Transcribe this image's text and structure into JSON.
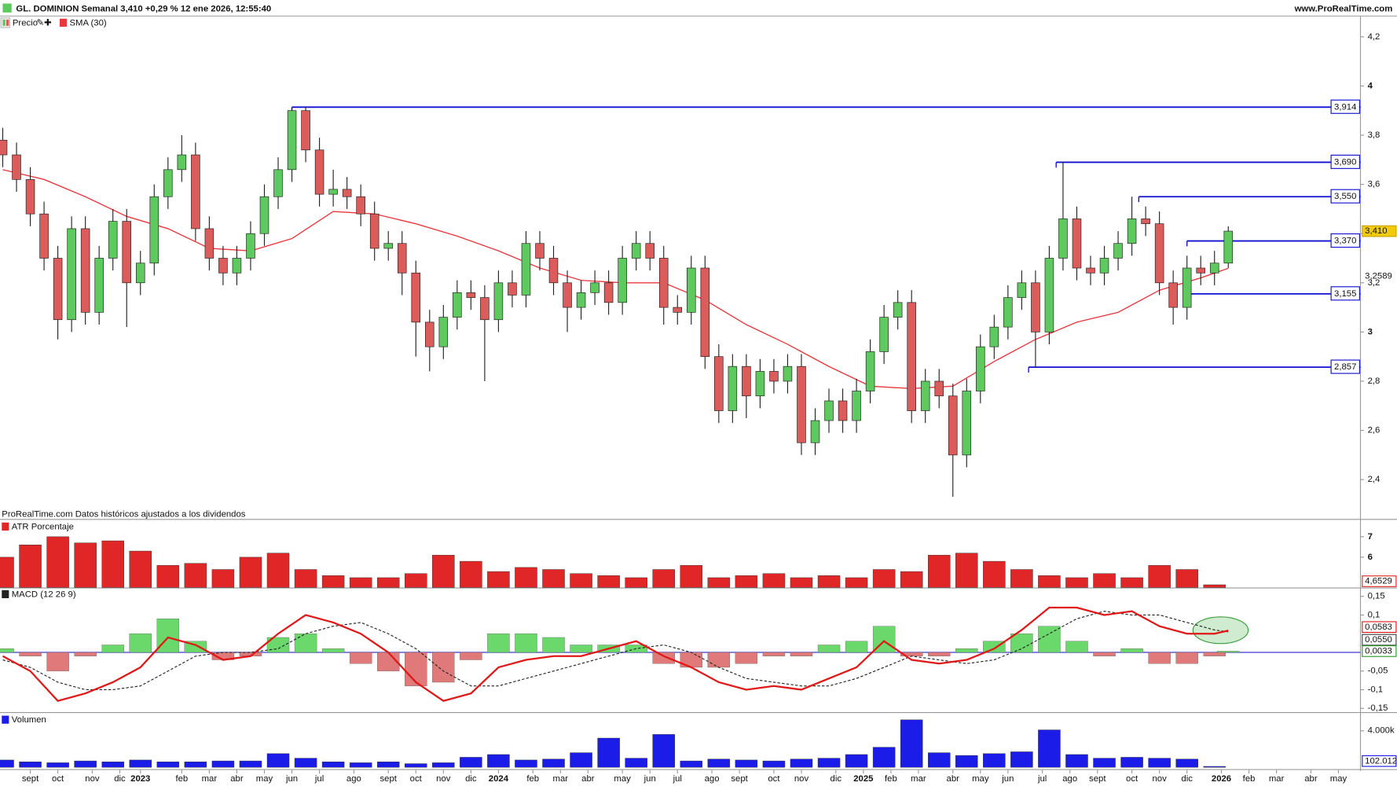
{
  "header": {
    "title": "GL. DOMINION Semanal 3,410 +0,29 % 12 ene 2026, 12:55:40",
    "site": "www.ProRealTime.com"
  },
  "chart_data": [
    {
      "type": "candlestick",
      "name": "Precio",
      "up_color": "#5ec95e",
      "down_color": "#dc5b5b",
      "note": "ProRealTime.com Datos históricos ajustados a los dividendos",
      "x": [
        0,
        2,
        4,
        6,
        8,
        10,
        12,
        14,
        16,
        18,
        20,
        22,
        24,
        26,
        28,
        30,
        32,
        34,
        36,
        38,
        40,
        42,
        44,
        46,
        48,
        50,
        52,
        54,
        56,
        58,
        60,
        62,
        64,
        66,
        68,
        70,
        72,
        74,
        76,
        78,
        80,
        82,
        84,
        86,
        88,
        90,
        92,
        94,
        96,
        98,
        100,
        102,
        104,
        106,
        108,
        110,
        112,
        114,
        116,
        118,
        120,
        122,
        124,
        126,
        128,
        130,
        132,
        134,
        136,
        138,
        140,
        142,
        144,
        146,
        148,
        150,
        152,
        154,
        156,
        158,
        160,
        162,
        164,
        166,
        168,
        170,
        172,
        174,
        176,
        178
      ],
      "open": [
        3.78,
        3.72,
        3.62,
        3.48,
        3.3,
        3.05,
        3.42,
        3.08,
        3.3,
        3.45,
        3.2,
        3.28,
        3.55,
        3.66,
        3.72,
        3.42,
        3.3,
        3.24,
        3.3,
        3.4,
        3.55,
        3.66,
        3.9,
        3.74,
        3.56,
        3.58,
        3.55,
        3.48,
        3.34,
        3.36,
        3.24,
        3.04,
        2.94,
        3.06,
        3.16,
        3.14,
        3.05,
        3.2,
        3.15,
        3.36,
        3.3,
        3.2,
        3.1,
        3.16,
        3.2,
        3.12,
        3.3,
        3.36,
        3.3,
        3.1,
        3.08,
        3.26,
        2.9,
        2.68,
        2.86,
        2.74,
        2.84,
        2.8,
        2.86,
        2.55,
        2.64,
        2.72,
        2.64,
        2.76,
        2.92,
        3.06,
        3.12,
        2.68,
        2.8,
        2.74,
        2.5,
        2.76,
        2.94,
        3.02,
        3.14,
        3.2,
        3.0,
        3.3,
        3.46,
        3.26,
        3.24,
        3.3,
        3.36,
        3.46,
        3.44,
        3.2,
        3.1,
        3.26,
        3.24,
        3.28
      ],
      "high": [
        3.83,
        3.77,
        3.67,
        3.53,
        3.35,
        3.47,
        3.47,
        3.35,
        3.5,
        3.5,
        3.33,
        3.6,
        3.71,
        3.8,
        3.77,
        3.47,
        3.35,
        3.35,
        3.45,
        3.6,
        3.71,
        3.914,
        3.914,
        3.79,
        3.66,
        3.63,
        3.6,
        3.53,
        3.41,
        3.41,
        3.29,
        3.09,
        3.11,
        3.21,
        3.21,
        3.19,
        3.25,
        3.25,
        3.41,
        3.41,
        3.35,
        3.25,
        3.21,
        3.25,
        3.25,
        3.35,
        3.41,
        3.41,
        3.35,
        3.15,
        3.31,
        3.31,
        2.95,
        2.91,
        2.91,
        2.89,
        2.89,
        2.91,
        2.91,
        2.69,
        2.77,
        2.77,
        2.81,
        2.97,
        3.11,
        3.17,
        3.17,
        2.85,
        2.85,
        2.79,
        2.81,
        2.99,
        3.07,
        3.19,
        3.25,
        3.25,
        3.35,
        3.69,
        3.51,
        3.31,
        3.35,
        3.41,
        3.55,
        3.51,
        3.49,
        3.25,
        3.31,
        3.31,
        3.33,
        3.43
      ],
      "low": [
        3.67,
        3.57,
        3.43,
        3.25,
        2.97,
        3.0,
        3.03,
        3.03,
        3.25,
        3.02,
        3.15,
        3.23,
        3.5,
        3.61,
        3.37,
        3.25,
        3.19,
        3.19,
        3.25,
        3.35,
        3.5,
        3.61,
        3.69,
        3.51,
        3.51,
        3.5,
        3.43,
        3.29,
        3.29,
        3.15,
        2.9,
        2.84,
        2.89,
        3.01,
        3.09,
        2.8,
        3.0,
        3.1,
        3.1,
        3.25,
        3.15,
        3.0,
        3.05,
        3.11,
        3.07,
        3.07,
        3.25,
        3.25,
        3.03,
        3.03,
        3.03,
        2.85,
        2.63,
        2.63,
        2.65,
        2.69,
        2.75,
        2.75,
        2.5,
        2.5,
        2.59,
        2.59,
        2.59,
        2.71,
        2.87,
        3.01,
        2.63,
        2.63,
        2.69,
        2.33,
        2.45,
        2.71,
        2.89,
        2.97,
        3.09,
        2.857,
        2.95,
        3.25,
        3.21,
        3.19,
        3.19,
        3.25,
        3.31,
        3.39,
        3.15,
        3.03,
        3.05,
        3.19,
        3.19,
        3.26
      ],
      "close": [
        3.72,
        3.62,
        3.48,
        3.3,
        3.05,
        3.42,
        3.08,
        3.3,
        3.45,
        3.2,
        3.28,
        3.55,
        3.66,
        3.72,
        3.42,
        3.3,
        3.24,
        3.3,
        3.4,
        3.55,
        3.66,
        3.9,
        3.74,
        3.56,
        3.58,
        3.55,
        3.48,
        3.34,
        3.36,
        3.24,
        3.04,
        2.94,
        3.06,
        3.16,
        3.14,
        3.05,
        3.2,
        3.15,
        3.36,
        3.3,
        3.2,
        3.1,
        3.16,
        3.2,
        3.12,
        3.3,
        3.36,
        3.3,
        3.1,
        3.08,
        3.26,
        2.9,
        2.68,
        2.86,
        2.74,
        2.84,
        2.8,
        2.86,
        2.55,
        2.64,
        2.72,
        2.64,
        2.76,
        2.92,
        3.06,
        3.12,
        2.68,
        2.8,
        2.74,
        2.5,
        2.76,
        2.94,
        3.02,
        3.14,
        3.2,
        3.0,
        3.3,
        3.46,
        3.26,
        3.24,
        3.3,
        3.36,
        3.46,
        3.44,
        3.2,
        3.1,
        3.26,
        3.24,
        3.28,
        3.41
      ],
      "last_value": {
        "value": 3.41,
        "label": "3,410"
      },
      "overlay": {
        "name": "SMA (30)",
        "color": "#e8383d",
        "x": [
          0,
          6,
          12,
          18,
          24,
          30,
          36,
          42,
          48,
          54,
          60,
          66,
          72,
          78,
          84,
          90,
          96,
          102,
          108,
          114,
          120,
          126,
          132,
          138,
          144,
          150,
          156,
          162,
          168,
          174,
          178
        ],
        "values": [
          3.66,
          3.62,
          3.55,
          3.47,
          3.42,
          3.34,
          3.33,
          3.38,
          3.49,
          3.48,
          3.44,
          3.39,
          3.33,
          3.26,
          3.21,
          3.2,
          3.2,
          3.13,
          3.03,
          2.95,
          2.86,
          2.78,
          2.77,
          2.78,
          2.88,
          2.97,
          3.04,
          3.08,
          3.17,
          3.22,
          3.2589
        ],
        "last_label": "3,2589"
      },
      "level_color": "#1010d0",
      "levels": [
        {
          "value": 3.914,
          "label": "3,914",
          "start": 42
        },
        {
          "value": 3.69,
          "label": "3,690",
          "start": 153
        },
        {
          "value": 3.55,
          "label": "3,550",
          "start": 165
        },
        {
          "value": 3.37,
          "label": "3,370",
          "start": 172
        },
        {
          "value": 3.155,
          "label": "3,155",
          "start": 172
        },
        {
          "value": 2.857,
          "label": "2,857",
          "start": 149
        }
      ],
      "xlim": [
        -0.4,
        197.2
      ],
      "xticks": [
        {
          "value": 4,
          "label": "sept"
        },
        {
          "value": 8,
          "label": "oct"
        },
        {
          "value": 13,
          "label": "nov"
        },
        {
          "value": 17,
          "label": "dic"
        },
        {
          "value": 20,
          "label": "2023"
        },
        {
          "value": 26,
          "label": "feb"
        },
        {
          "value": 30,
          "label": "mar"
        },
        {
          "value": 34,
          "label": "abr"
        },
        {
          "value": 38,
          "label": "may"
        },
        {
          "value": 42,
          "label": "jun"
        },
        {
          "value": 46,
          "label": "jul"
        },
        {
          "value": 51,
          "label": "ago"
        },
        {
          "value": 56,
          "label": "sept"
        },
        {
          "value": 60,
          "label": "oct"
        },
        {
          "value": 64,
          "label": "nov"
        },
        {
          "value": 68,
          "label": "dic"
        },
        {
          "value": 72,
          "label": "2024"
        },
        {
          "value": 77,
          "label": "feb"
        },
        {
          "value": 81,
          "label": "mar"
        },
        {
          "value": 85,
          "label": "abr"
        },
        {
          "value": 90,
          "label": "may"
        },
        {
          "value": 94,
          "label": "jun"
        },
        {
          "value": 98,
          "label": "jul"
        },
        {
          "value": 103,
          "label": "ago"
        },
        {
          "value": 107,
          "label": "sept"
        },
        {
          "value": 112,
          "label": "oct"
        },
        {
          "value": 116,
          "label": "nov"
        },
        {
          "value": 121,
          "label": "dic"
        },
        {
          "value": 125,
          "label": "2025"
        },
        {
          "value": 129,
          "label": "feb"
        },
        {
          "value": 133,
          "label": "mar"
        },
        {
          "value": 138,
          "label": "abr"
        },
        {
          "value": 142,
          "label": "may"
        },
        {
          "value": 146,
          "label": "jun"
        },
        {
          "value": 151,
          "label": "jul"
        },
        {
          "value": 155,
          "label": "ago"
        },
        {
          "value": 159,
          "label": "sept"
        },
        {
          "value": 164,
          "label": "oct"
        },
        {
          "value": 168,
          "label": "nov"
        },
        {
          "value": 172,
          "label": "dic"
        },
        {
          "value": 177,
          "label": "2026"
        },
        {
          "value": 181,
          "label": "feb"
        },
        {
          "value": 185,
          "label": "mar"
        },
        {
          "value": 190,
          "label": "abr"
        },
        {
          "value": 194,
          "label": "may"
        }
      ],
      "ylim": [
        2.24,
        4.27
      ],
      "yticks": [
        {
          "value": 2.4,
          "label": "2,4"
        },
        {
          "value": 2.6,
          "label": "2,6"
        },
        {
          "value": 2.8,
          "label": "2,8"
        },
        3,
        {
          "value": 3.2,
          "label": "3,2"
        },
        {
          "value": 3.4,
          "label": "3,4"
        },
        {
          "value": 3.6,
          "label": "3,6"
        },
        {
          "value": 3.8,
          "label": "3,8"
        },
        4,
        {
          "value": 4.2,
          "label": "4,2"
        }
      ]
    },
    {
      "type": "bar",
      "title": "ATR Porcentaje",
      "color": "#e02626",
      "x": [
        0,
        4,
        8,
        12,
        16,
        20,
        24,
        28,
        32,
        36,
        40,
        44,
        48,
        52,
        56,
        60,
        64,
        68,
        72,
        76,
        80,
        84,
        88,
        92,
        96,
        100,
        104,
        108,
        112,
        116,
        120,
        124,
        128,
        132,
        136,
        140,
        144,
        148,
        152,
        156,
        160,
        164,
        168,
        172,
        176
      ],
      "values": [
        6.0,
        6.6,
        7.0,
        6.7,
        6.8,
        6.3,
        5.6,
        5.7,
        5.4,
        6.0,
        6.2,
        5.4,
        5.1,
        5.0,
        5.0,
        5.2,
        6.1,
        5.8,
        5.3,
        5.5,
        5.4,
        5.2,
        5.1,
        5.0,
        5.4,
        5.6,
        5.0,
        5.1,
        5.2,
        5.0,
        5.1,
        5.0,
        5.4,
        5.3,
        6.1,
        6.2,
        5.8,
        5.4,
        5.1,
        5.0,
        5.2,
        5.0,
        5.6,
        5.4,
        4.6529
      ],
      "last_label": "4,6529",
      "ylim": [
        4.52,
        7.78
      ],
      "yticks": [
        6,
        7
      ]
    },
    {
      "type": "combo",
      "title": "MACD (12 26 9)",
      "x": [
        0,
        4,
        8,
        12,
        16,
        20,
        24,
        28,
        32,
        36,
        40,
        44,
        48,
        52,
        56,
        60,
        64,
        68,
        72,
        76,
        80,
        84,
        88,
        92,
        96,
        100,
        104,
        108,
        112,
        116,
        120,
        124,
        128,
        132,
        136,
        140,
        144,
        148,
        152,
        156,
        160,
        164,
        168,
        172,
        176,
        178
      ],
      "histogram": {
        "up_color": "#6bd86b",
        "down_color": "#e07a7a",
        "values": [
          0.01,
          -0.01,
          -0.05,
          -0.01,
          0.02,
          0.05,
          0.09,
          0.03,
          -0.02,
          -0.01,
          0.04,
          0.05,
          0.01,
          -0.03,
          -0.05,
          -0.09,
          -0.08,
          -0.02,
          0.05,
          0.05,
          0.04,
          0.02,
          0.02,
          0.02,
          -0.03,
          -0.04,
          -0.04,
          -0.03,
          -0.01,
          -0.01,
          0.02,
          0.03,
          0.07,
          -0.01,
          -0.01,
          0.01,
          0.03,
          0.05,
          0.07,
          0.03,
          -0.01,
          0.01,
          -0.03,
          -0.03,
          -0.01,
          0.0033
        ],
        "last_label": "0,0033"
      },
      "macd": {
        "color": "#e01818",
        "values": [
          -0.01,
          -0.05,
          -0.13,
          -0.11,
          -0.08,
          -0.04,
          0.04,
          0.02,
          -0.02,
          -0.01,
          0.05,
          0.1,
          0.08,
          0.05,
          0.0,
          -0.08,
          -0.13,
          -0.11,
          -0.04,
          -0.02,
          -0.01,
          -0.01,
          0.01,
          0.03,
          -0.01,
          -0.04,
          -0.08,
          -0.1,
          -0.09,
          -0.1,
          -0.07,
          -0.04,
          0.03,
          -0.02,
          -0.03,
          -0.02,
          0.01,
          0.06,
          0.12,
          0.12,
          0.1,
          0.11,
          0.07,
          0.05,
          0.05,
          0.0583
        ],
        "last_label": "0,0583"
      },
      "signal": {
        "color": "#222222",
        "values": [
          -0.02,
          -0.04,
          -0.08,
          -0.1,
          -0.1,
          -0.09,
          -0.05,
          -0.01,
          0.0,
          0.0,
          0.01,
          0.05,
          0.07,
          0.08,
          0.05,
          0.01,
          -0.05,
          -0.09,
          -0.09,
          -0.07,
          -0.05,
          -0.03,
          -0.01,
          0.01,
          0.02,
          0.0,
          -0.04,
          -0.07,
          -0.08,
          -0.09,
          -0.09,
          -0.07,
          -0.04,
          -0.01,
          -0.02,
          -0.03,
          -0.02,
          0.01,
          0.05,
          0.09,
          0.11,
          0.1,
          0.1,
          0.08,
          0.06,
          0.055
        ],
        "last_label": "0,0550"
      },
      "ylim": [
        -0.16,
        0.169
      ],
      "yticks": [
        {
          "value": -0.15,
          "label": "-0,15"
        },
        {
          "value": -0.1,
          "label": "-0,1"
        },
        {
          "value": -0.05,
          "label": "-0,05"
        },
        {
          "value": 0.1,
          "label": "0,1"
        },
        {
          "value": 0.15,
          "label": "0,15"
        }
      ]
    },
    {
      "type": "bar",
      "title": "Volumen",
      "color": "#1c1ce8",
      "x": [
        0,
        4,
        8,
        12,
        16,
        20,
        24,
        28,
        32,
        36,
        40,
        44,
        48,
        52,
        56,
        60,
        64,
        68,
        72,
        76,
        80,
        84,
        88,
        92,
        96,
        100,
        104,
        108,
        112,
        116,
        120,
        124,
        128,
        132,
        136,
        140,
        144,
        148,
        152,
        156,
        160,
        164,
        168,
        172,
        176
      ],
      "values": [
        800000,
        600000,
        500000,
        700000,
        600000,
        800000,
        600000,
        600000,
        700000,
        700000,
        1500000,
        1000000,
        600000,
        500000,
        600000,
        400000,
        500000,
        1100000,
        1400000,
        800000,
        900000,
        1600000,
        3200000,
        1000000,
        3600000,
        700000,
        900000,
        800000,
        700000,
        900000,
        1000000,
        1400000,
        2200000,
        5200000,
        1600000,
        1300000,
        1500000,
        1700000,
        4100000,
        1400000,
        1000000,
        1100000,
        1000000,
        900000,
        102012
      ],
      "last_label": "102.012",
      "ylim": [
        0,
        5850000
      ],
      "yticks": [
        {
          "value": 4000000,
          "label": "4.000k"
        }
      ]
    }
  ]
}
